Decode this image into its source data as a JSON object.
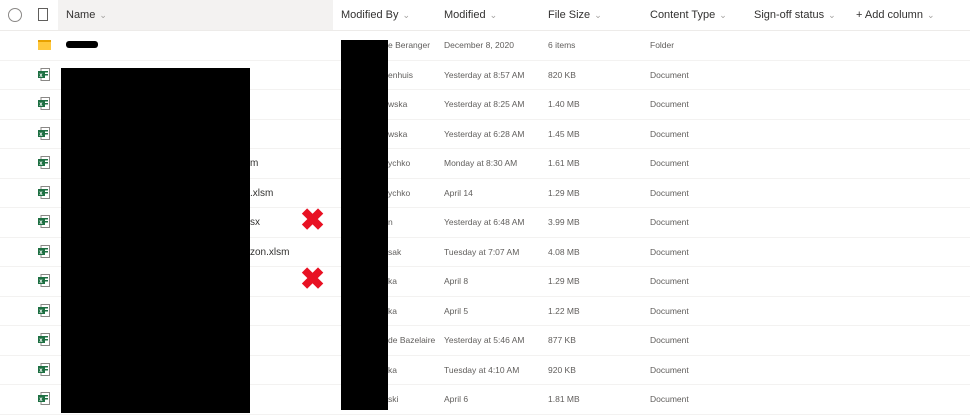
{
  "header": {
    "name": "Name",
    "modified_by": "Modified By",
    "modified": "Modified",
    "file_size": "File Size",
    "content_type": "Content Type",
    "signoff": "Sign-off status",
    "add_column": "+ Add column"
  },
  "rows": [
    {
      "type": "folder",
      "name": "",
      "name_suffix": "",
      "modified_by": "e Beranger",
      "modified": "December 8, 2020",
      "size": "6 items",
      "content_type": "Folder"
    },
    {
      "type": "excel",
      "name_suffix": "",
      "modified_by": "enhuis",
      "modified": "Yesterday at 8:57 AM",
      "size": "820 KB",
      "content_type": "Document"
    },
    {
      "type": "excel",
      "name_suffix": "",
      "modified_by": "wska",
      "modified": "Yesterday at 8:25 AM",
      "size": "1.40 MB",
      "content_type": "Document"
    },
    {
      "type": "excel",
      "name_suffix": "",
      "modified_by": "wska",
      "modified": "Yesterday at 6:28 AM",
      "size": "1.45 MB",
      "content_type": "Document"
    },
    {
      "type": "excel",
      "name_suffix": "m",
      "modified_by": "ychko",
      "modified": "Monday at 8:30 AM",
      "size": "1.61 MB",
      "content_type": "Document"
    },
    {
      "type": "excel",
      "name_suffix": ".xlsm",
      "modified_by": "ychko",
      "modified": "April 14",
      "size": "1.29 MB",
      "content_type": "Document"
    },
    {
      "type": "excel",
      "name_suffix": "sx",
      "modified_by": "n",
      "modified": "Yesterday at 6:48 AM",
      "size": "3.99 MB",
      "content_type": "Document",
      "marked": true
    },
    {
      "type": "excel",
      "name_suffix": "zon.xlsm",
      "modified_by": "sak",
      "modified": "Tuesday at 7:07 AM",
      "size": "4.08 MB",
      "content_type": "Document"
    },
    {
      "type": "excel",
      "name_suffix": "",
      "modified_by": "ka",
      "modified": "April 8",
      "size": "1.29 MB",
      "content_type": "Document",
      "marked": true
    },
    {
      "type": "excel",
      "name_suffix": "",
      "modified_by": "ka",
      "modified": "April 5",
      "size": "1.22 MB",
      "content_type": "Document"
    },
    {
      "type": "excel",
      "name_suffix": "",
      "modified_by": "de Bazelaire",
      "modified": "Yesterday at 5:46 AM",
      "size": "877 KB",
      "content_type": "Document"
    },
    {
      "type": "excel",
      "name_suffix": "",
      "modified_by": "ka",
      "modified": "Tuesday at 4:10 AM",
      "size": "920 KB",
      "content_type": "Document"
    },
    {
      "type": "excel",
      "name_suffix": "",
      "modified_by": "ski",
      "modified": "April 6",
      "size": "1.81 MB",
      "content_type": "Document"
    }
  ],
  "colors": {
    "excel": "#1d6f42",
    "folder": "#ffc83d",
    "mark": "#e81123",
    "redaction": "#000000"
  }
}
